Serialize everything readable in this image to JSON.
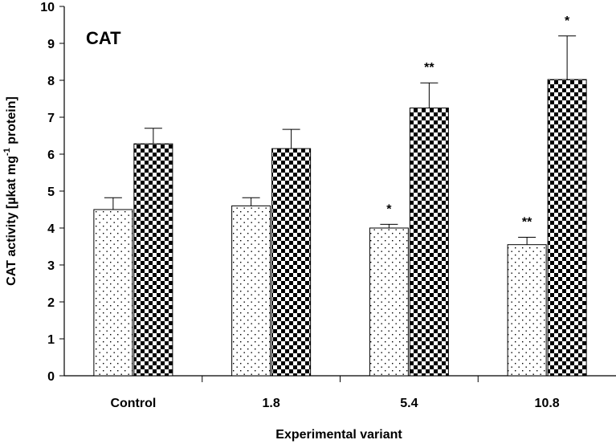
{
  "chart_data": {
    "type": "bar",
    "title": "CAT",
    "xlabel": "Experimental variant",
    "ylabel": "CAT activity [µkat mg",
    "ylabel_superscript": "-1",
    "ylabel_suffix": " protein]",
    "ylim": [
      0,
      10
    ],
    "yticks": [
      0,
      1,
      2,
      3,
      4,
      5,
      6,
      7,
      8,
      9,
      10
    ],
    "categories": [
      "Control",
      "1.8",
      "5.4",
      "10.8"
    ],
    "series": [
      {
        "name": "series-1",
        "pattern": "dotted",
        "values": [
          4.5,
          4.6,
          4.0,
          3.55
        ],
        "errors": [
          0.32,
          0.22,
          0.1,
          0.2
        ],
        "significance": [
          "",
          "",
          "*",
          "**"
        ]
      },
      {
        "name": "series-2",
        "pattern": "checkered",
        "values": [
          6.28,
          6.15,
          7.25,
          8.02
        ],
        "errors": [
          0.42,
          0.52,
          0.68,
          1.18
        ],
        "significance": [
          "",
          "",
          "**",
          "*"
        ]
      }
    ],
    "grid": false,
    "legend": "none"
  }
}
